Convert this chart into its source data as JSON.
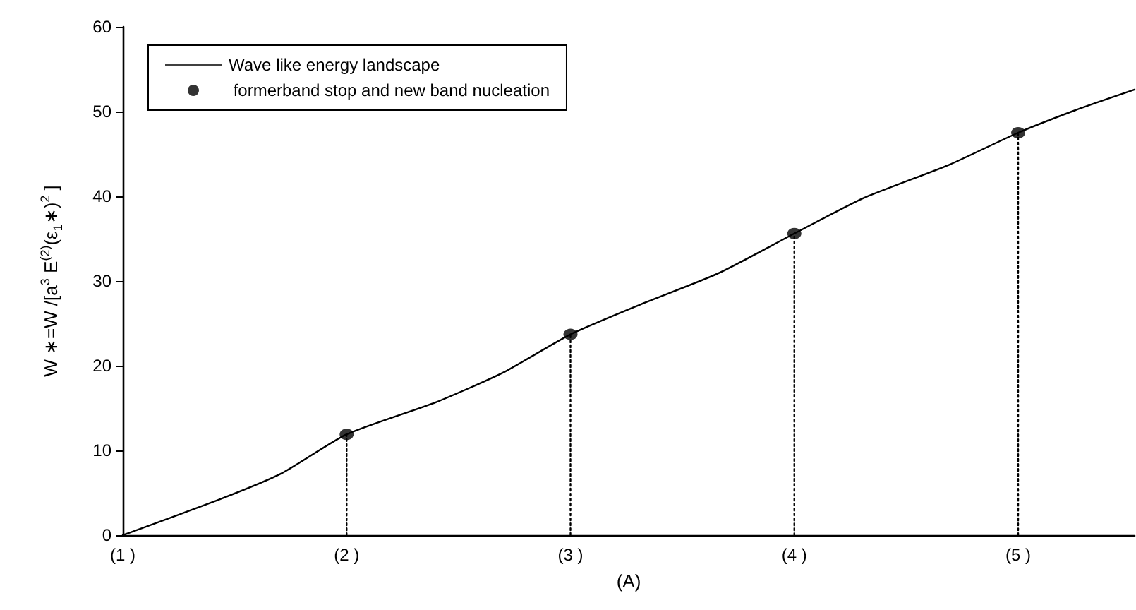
{
  "chart_data": {
    "type": "line",
    "xlabel": "(A)",
    "ylabel": "W ∗=W /[a$^{3}$ E$^{(2)}$(ε$_{1}$∗)$^{2}$ ]",
    "xlim": [
      1,
      5.52
    ],
    "xticks": [
      {
        "value": 1,
        "label": "(1 )"
      },
      {
        "value": 2,
        "label": "(2 )"
      },
      {
        "value": 3,
        "label": "(3 )"
      },
      {
        "value": 4,
        "label": "(4 )"
      },
      {
        "value": 5,
        "label": "(5 )"
      }
    ],
    "ylim": [
      0,
      60
    ],
    "yticks": [
      0,
      10,
      20,
      30,
      40,
      50,
      60
    ],
    "grid": false,
    "legend": "top left",
    "series": [
      {
        "name": "Wave like energy landscape",
        "type": "line",
        "color": "#000000",
        "marker": "none",
        "line_style": "solid",
        "x": [
          1,
          1.44,
          1.71,
          2,
          2.4,
          2.7,
          3,
          3.31,
          3.66,
          4,
          4.31,
          4.69,
          5,
          5.28,
          5.52
        ],
        "values": [
          0,
          4.3,
          7.3,
          11.9,
          15.7,
          19.2,
          23.7,
          27.2,
          30.9,
          35.6,
          39.8,
          43.7,
          47.5,
          50.4,
          52.6
        ]
      },
      {
        "name": " formerband stop and new band nucleation",
        "type": "scatter",
        "color": "#000000",
        "marker": "circle",
        "x": [
          2,
          3,
          4,
          5
        ],
        "values": [
          11.9,
          23.7,
          35.6,
          47.5
        ]
      },
      {
        "type": "line",
        "color": "#000000",
        "marker": "none",
        "line_style": "dotted",
        "x": [
          2,
          2
        ],
        "values": [
          0,
          11.9
        ]
      },
      {
        "type": "line",
        "color": "#000000",
        "marker": "none",
        "line_style": "dotted",
        "x": [
          3,
          3
        ],
        "values": [
          0,
          23.7
        ]
      },
      {
        "type": "line",
        "color": "#000000",
        "marker": "none",
        "line_style": "dotted",
        "x": [
          4,
          4
        ],
        "values": [
          0,
          35.6
        ]
      },
      {
        "type": "line",
        "color": "#000000",
        "marker": "none",
        "line_style": "dotted",
        "x": [
          5,
          5
        ],
        "values": [
          0,
          47.5
        ]
      }
    ]
  }
}
